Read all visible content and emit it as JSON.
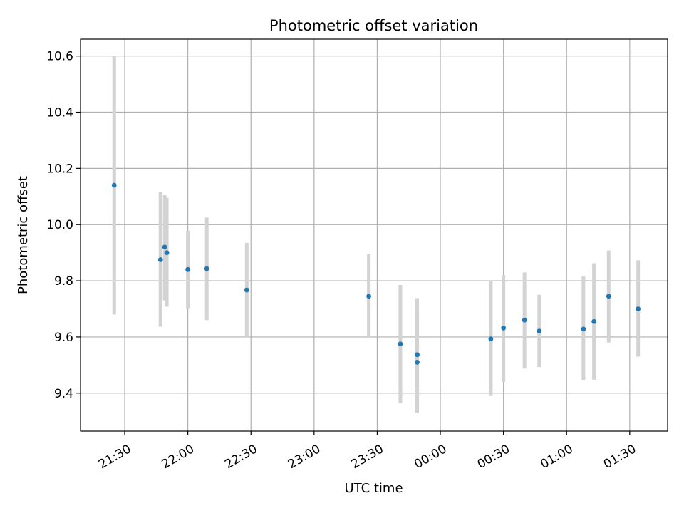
{
  "chart_data": {
    "type": "scatter",
    "title": "Photometric offset variation",
    "xlabel": "UTC time",
    "ylabel": "Photometric offset",
    "x_axis_kind": "time",
    "xlim": [
      "21:09",
      "01:48"
    ],
    "ylim": [
      9.265,
      10.66
    ],
    "x_ticks": [
      "21:30",
      "22:00",
      "22:30",
      "23:00",
      "23:30",
      "00:00",
      "00:30",
      "01:00",
      "01:30"
    ],
    "y_ticks": [
      "9.4",
      "9.6",
      "9.8",
      "10.0",
      "10.2",
      "10.4",
      "10.6"
    ],
    "grid": true,
    "colors": {
      "points": "#1f77b4",
      "error_bars": "#d3d3d3",
      "grid": "#b0b0b0",
      "axes": "#000000"
    },
    "series": [
      {
        "x": [
          "21:25",
          "21:47",
          "21:49",
          "21:50",
          "22:00",
          "22:09",
          "22:28",
          "23:26",
          "23:41",
          "23:49",
          "23:49",
          "00:24",
          "00:30",
          "00:40",
          "00:47",
          "01:08",
          "01:13",
          "01:20",
          "01:34"
        ],
        "y": [
          10.14,
          9.875,
          9.92,
          9.9,
          9.84,
          9.843,
          9.767,
          9.745,
          9.575,
          9.537,
          9.51,
          9.593,
          9.632,
          9.66,
          9.621,
          9.628,
          9.655,
          9.745,
          9.7
        ],
        "err_low": [
          9.68,
          9.637,
          9.73,
          9.708,
          9.702,
          9.66,
          9.6,
          9.595,
          9.365,
          9.335,
          9.33,
          9.39,
          9.44,
          9.488,
          9.493,
          9.445,
          9.448,
          9.58,
          9.53
        ],
        "err_high": [
          10.598,
          10.115,
          10.105,
          10.095,
          9.978,
          10.025,
          9.935,
          9.895,
          9.785,
          9.738,
          9.688,
          9.8,
          9.82,
          9.83,
          9.75,
          9.815,
          9.862,
          9.908,
          9.873
        ]
      }
    ]
  }
}
